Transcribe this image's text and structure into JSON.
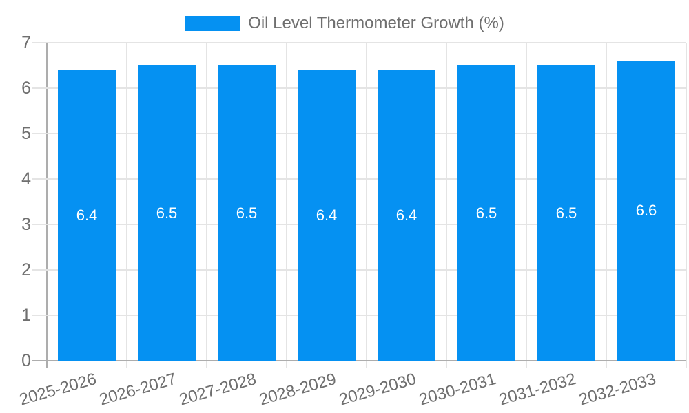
{
  "chart_data": {
    "type": "bar",
    "title": "",
    "legend_label": "Oil Level Thermometer Growth (%)",
    "legend_position": "top",
    "categories": [
      "2025-2026",
      "2026-2027",
      "2027-2028",
      "2028-2029",
      "2029-2030",
      "2030-2031",
      "2031-2032",
      "2032-2033"
    ],
    "series": [
      {
        "name": "Oil Level Thermometer Growth (%)",
        "values": [
          6.4,
          6.5,
          6.5,
          6.4,
          6.4,
          6.5,
          6.5,
          6.6
        ]
      }
    ],
    "value_labels": [
      "6.4",
      "6.5",
      "6.5",
      "6.4",
      "6.4",
      "6.5",
      "6.5",
      "6.6"
    ],
    "xlabel": "",
    "ylabel": "",
    "ylim": [
      0,
      7
    ],
    "yticks": [
      0,
      1,
      2,
      3,
      4,
      5,
      6,
      7
    ],
    "grid": true,
    "x_tick_rotation_deg": -16,
    "colors": {
      "bar": "#0591F2",
      "grid_line": "#E4E4E4",
      "zero_line": "#ADADAD",
      "tick_text": "#6F6F6F",
      "value_text": "#FFFFFF",
      "legend_text": "#6F6F6F",
      "background": "#FFFFFF"
    }
  }
}
